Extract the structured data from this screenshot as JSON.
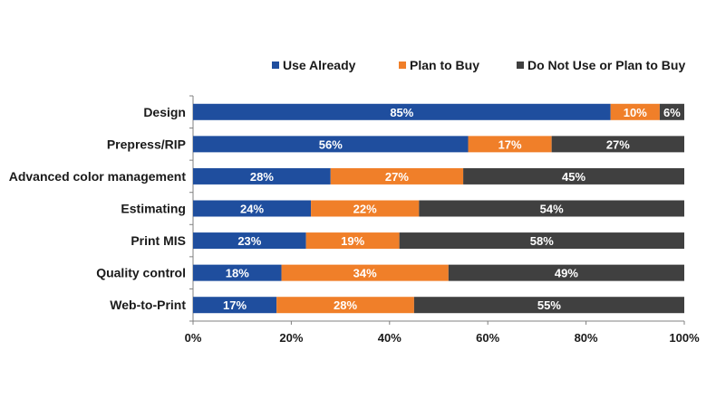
{
  "chart_data": {
    "type": "bar",
    "orientation": "horizontal",
    "stacked": true,
    "title": "",
    "xlabel": "",
    "ylabel": "",
    "xlim": [
      0,
      100
    ],
    "x_ticks": [
      "0%",
      "20%",
      "40%",
      "60%",
      "80%",
      "100%"
    ],
    "legend_position": "top",
    "categories": [
      "Design",
      "Prepress/RIP",
      "Advanced color management",
      "Estimating",
      "Print MIS",
      "Quality control",
      "Web-to-Print"
    ],
    "series": [
      {
        "name": "Use Already",
        "color": "#1f4e9e",
        "values": [
          85,
          56,
          28,
          24,
          23,
          18,
          17
        ]
      },
      {
        "name": "Plan to Buy",
        "color": "#f07f29",
        "values": [
          10,
          17,
          27,
          22,
          19,
          34,
          28
        ]
      },
      {
        "name": "Do Not Use or Plan to Buy",
        "color": "#404040",
        "values": [
          6,
          27,
          45,
          54,
          58,
          49,
          55
        ]
      }
    ]
  }
}
